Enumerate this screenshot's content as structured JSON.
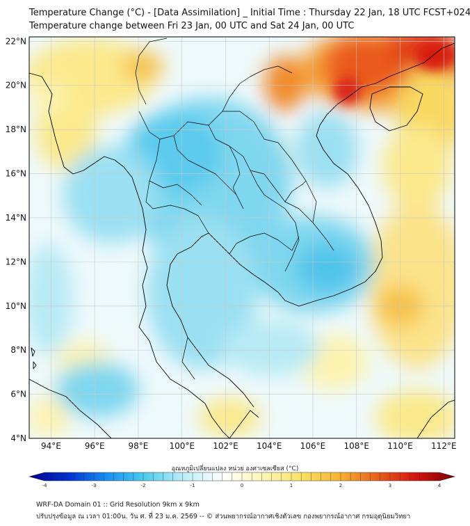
{
  "header": {
    "title_line1": "Temperature Change (°C) - [Data Assimilation] _ Initial Time : Thursday 22 Jan, 18 UTC FCST+024",
    "title_line2": "Temperature change between Fri 23 Jan, 00 UTC and Sat 24 Jan, 00 UTC"
  },
  "map": {
    "lat_labels": [
      "22°N",
      "20°N",
      "18°N",
      "16°N",
      "14°N",
      "12°N",
      "10°N",
      "8°N",
      "6°N",
      "4°N"
    ],
    "lon_labels": [
      "94°E",
      "96°E",
      "98°E",
      "100°E",
      "102°E",
      "104°E",
      "106°E",
      "108°E",
      "110°E",
      "112°E"
    ],
    "gridlines": true,
    "colors": {
      "land_outline": "#000000",
      "gridline": "#c8c8c8",
      "background_field": "#eef9fb"
    }
  },
  "colorbar": {
    "label": "อุณหภูมิเปลี่ยนแปลง หน่วย องศาเซลเซียส (°C)",
    "ticks": [
      "-4",
      "-3",
      "-2",
      "-1",
      "0",
      "1",
      "2",
      "3",
      "4"
    ],
    "min": -4,
    "max": 4,
    "colors": [
      "#00008f",
      "#0030d0",
      "#1a8ef2",
      "#4fcdee",
      "#bdeef8",
      "#ffffff",
      "#fdf6b8",
      "#f9e36a",
      "#f6b52e",
      "#e8601c",
      "#d4140f",
      "#7e0000"
    ]
  },
  "footer": {
    "line1": "WRF-DA Domain 01 :: Grid Resolution 9km x 9km",
    "line2": "ปรับปรุงข้อมูล ณ เวลา 01:00น. วัน ศ. ที่ 23 ม.ค. 2569 -- © ส่วนพยากรณ์อากาศเชิงตัวเลข กองพยากรณ์อากาศ กรมอุตุนิยมวิทยา"
  }
}
